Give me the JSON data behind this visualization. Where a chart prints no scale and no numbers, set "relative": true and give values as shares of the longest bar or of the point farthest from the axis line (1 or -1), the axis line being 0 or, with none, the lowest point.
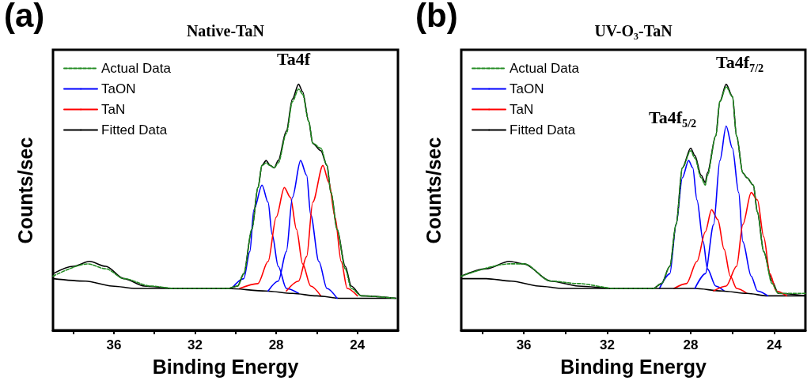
{
  "chart_data": [
    {
      "type": "line",
      "title": "Native-TaN",
      "xlabel": "Binding Energy",
      "ylabel": "Counts/sec",
      "relative": true,
      "xlim": [
        39,
        22
      ],
      "xticks": [
        {
          "value": 38,
          "label": null
        },
        36,
        {
          "value": 34,
          "label": null
        },
        32,
        {
          "value": 30,
          "label": null
        },
        28,
        {
          "value": 26,
          "label": null
        },
        24
      ],
      "legend": "top left",
      "grid": false,
      "marker": "none",
      "annotations": [
        "(a)",
        "Ta4f"
      ],
      "series": [
        {
          "name": "Actual Data",
          "color": "#228b22",
          "line_style": "dashed",
          "x": [
            39.0,
            37.3,
            36.4,
            35.5,
            34.2,
            33.0,
            30.4,
            29.9,
            29.6,
            29.2,
            28.9,
            28.7,
            28.5,
            28.3,
            28.1,
            27.9,
            27.5,
            27.2,
            26.9,
            26.7,
            26.4,
            26.2,
            25.8,
            25.5,
            25.3,
            25.0,
            24.6,
            24.3,
            23.8,
            22.1
          ],
          "values": [
            0.22,
            0.27,
            0.25,
            0.21,
            0.18,
            0.17,
            0.17,
            0.18,
            0.23,
            0.41,
            0.58,
            0.67,
            0.68,
            0.67,
            0.66,
            0.68,
            0.8,
            0.93,
            0.98,
            0.96,
            0.85,
            0.76,
            0.74,
            0.67,
            0.56,
            0.41,
            0.25,
            0.17,
            0.14,
            0.13
          ]
        },
        {
          "name": "TaON",
          "color": "#0000ff",
          "x": [
            30.2,
            29.6,
            29.3,
            29.1,
            28.7,
            28.4,
            28.2,
            27.9,
            27.5,
            26.9
          ],
          "values": [
            0.17,
            0.21,
            0.32,
            0.49,
            0.59,
            0.52,
            0.39,
            0.26,
            0.17,
            0.15
          ]
        },
        {
          "name": "TaN",
          "color": "#ff0000",
          "x": [
            29.8,
            28.9,
            28.4,
            28.0,
            27.6,
            27.3,
            27.0,
            26.7,
            26.3,
            25.8
          ],
          "values": [
            0.17,
            0.19,
            0.28,
            0.46,
            0.58,
            0.54,
            0.41,
            0.27,
            0.18,
            0.14
          ]
        },
        {
          "name": "Fitted Data",
          "color": "#000000",
          "x": [
            39.0,
            38.0,
            37.2,
            36.4,
            35.5,
            34.5,
            33.0,
            30.4,
            29.9,
            29.6,
            29.2,
            28.9,
            28.7,
            28.5,
            28.3,
            28.1,
            27.9,
            27.5,
            27.2,
            26.9,
            26.7,
            26.4,
            26.2,
            25.8,
            25.5,
            25.3,
            25.0,
            24.6,
            24.3,
            23.8,
            22.1
          ],
          "values": [
            0.23,
            0.26,
            0.28,
            0.26,
            0.21,
            0.18,
            0.17,
            0.17,
            0.18,
            0.23,
            0.41,
            0.58,
            0.67,
            0.69,
            0.67,
            0.66,
            0.69,
            0.81,
            0.94,
            1.0,
            0.97,
            0.85,
            0.76,
            0.73,
            0.67,
            0.56,
            0.41,
            0.26,
            0.18,
            0.14,
            0.13
          ]
        },
        {
          "color": "#000000",
          "x": [
            39.0,
            37.4,
            36.1,
            34.9,
            33.0,
            30.4,
            28.5,
            27.2,
            26.0,
            24.8,
            22.1
          ],
          "values": [
            0.21,
            0.2,
            0.18,
            0.17,
            0.17,
            0.17,
            0.16,
            0.15,
            0.14,
            0.13,
            0.13
          ]
        },
        {
          "color": "#0000ff",
          "x": [
            28.4,
            27.9,
            27.5,
            27.2,
            26.8,
            26.5,
            26.3,
            25.9,
            25.5,
            25.0
          ],
          "values": [
            0.16,
            0.2,
            0.32,
            0.54,
            0.69,
            0.63,
            0.47,
            0.28,
            0.17,
            0.13
          ]
        },
        {
          "color": "#ff0000",
          "x": [
            27.5,
            26.9,
            26.5,
            26.2,
            25.7,
            25.4,
            25.1,
            24.8,
            24.5,
            24.0
          ],
          "values": [
            0.16,
            0.2,
            0.3,
            0.52,
            0.67,
            0.6,
            0.46,
            0.28,
            0.17,
            0.14
          ]
        }
      ]
    },
    {
      "type": "line",
      "title": "UV-O₃-TaN",
      "xlabel": "Binding Energy",
      "ylabel": "Counts/sec",
      "relative": true,
      "xlim": [
        39,
        22.5
      ],
      "xticks": [
        {
          "value": 38,
          "label": null
        },
        36,
        {
          "value": 34,
          "label": null
        },
        32,
        {
          "value": 30,
          "label": null
        },
        28,
        {
          "value": 26,
          "label": null
        },
        24
      ],
      "legend": "top left",
      "grid": false,
      "marker": "none",
      "annotations": [
        "(b)",
        "Ta4f$_{5/2}$",
        "Ta4f$_{7/2}$"
      ],
      "series": [
        {
          "name": "Actual Data",
          "color": "#228b22",
          "line_style": "dashed",
          "x": [
            39.0,
            36.7,
            36.0,
            34.7,
            33.4,
            31.6,
            29.8,
            29.4,
            29.0,
            28.7,
            28.4,
            28.0,
            27.8,
            27.5,
            27.3,
            27.2,
            26.8,
            26.6,
            26.3,
            26.0,
            25.8,
            25.5,
            25.3,
            25.0,
            24.8,
            24.5,
            24.1,
            23.8,
            22.5
          ],
          "values": [
            0.22,
            0.27,
            0.27,
            0.2,
            0.19,
            0.17,
            0.17,
            0.19,
            0.26,
            0.43,
            0.66,
            0.73,
            0.7,
            0.62,
            0.59,
            0.63,
            0.79,
            0.93,
            0.99,
            0.95,
            0.79,
            0.64,
            0.62,
            0.59,
            0.48,
            0.32,
            0.19,
            0.15,
            0.15
          ]
        },
        {
          "name": "TaON",
          "color": "#0000ff",
          "x": [
            29.5,
            29.0,
            28.7,
            28.4,
            28.1,
            27.9,
            27.7,
            27.4,
            27.2,
            26.8,
            26.4
          ],
          "values": [
            0.17,
            0.23,
            0.43,
            0.62,
            0.69,
            0.66,
            0.53,
            0.36,
            0.25,
            0.18,
            0.16
          ]
        },
        {
          "name": "TaN",
          "color": "#ff0000",
          "x": [
            28.8,
            28.2,
            27.7,
            27.3,
            27.0,
            26.7,
            26.4,
            26.1,
            25.8,
            25.3
          ],
          "values": [
            0.17,
            0.19,
            0.28,
            0.4,
            0.49,
            0.45,
            0.33,
            0.22,
            0.17,
            0.15
          ]
        },
        {
          "name": "Fitted Data",
          "color": "#000000",
          "x": [
            39.0,
            37.8,
            36.7,
            36.0,
            34.7,
            33.4,
            31.6,
            29.8,
            29.4,
            29.0,
            28.7,
            28.4,
            28.0,
            27.8,
            27.5,
            27.3,
            27.2,
            26.8,
            26.6,
            26.3,
            26.0,
            25.8,
            25.5,
            25.3,
            25.0,
            24.8,
            24.5,
            24.1,
            23.8,
            22.5
          ],
          "values": [
            0.22,
            0.25,
            0.28,
            0.27,
            0.2,
            0.18,
            0.17,
            0.17,
            0.19,
            0.26,
            0.43,
            0.66,
            0.74,
            0.71,
            0.63,
            0.6,
            0.64,
            0.79,
            0.93,
            1.0,
            0.95,
            0.79,
            0.64,
            0.62,
            0.59,
            0.48,
            0.32,
            0.2,
            0.15,
            0.14
          ]
        },
        {
          "color": "#000000",
          "x": [
            39.0,
            37.8,
            36.6,
            35.3,
            34.1,
            31.6,
            29.0,
            27.8,
            26.5,
            25.3,
            24.3,
            22.5
          ],
          "values": [
            0.21,
            0.21,
            0.2,
            0.18,
            0.17,
            0.17,
            0.17,
            0.17,
            0.16,
            0.15,
            0.14,
            0.14
          ]
        },
        {
          "color": "#0000ff",
          "x": [
            27.8,
            27.3,
            26.9,
            26.6,
            26.3,
            26.0,
            25.7,
            25.5,
            25.1,
            24.8,
            24.3
          ],
          "values": [
            0.17,
            0.23,
            0.43,
            0.69,
            0.83,
            0.74,
            0.56,
            0.36,
            0.22,
            0.16,
            0.14
          ]
        },
        {
          "color": "#ff0000",
          "x": [
            26.9,
            26.3,
            25.8,
            25.5,
            25.1,
            24.8,
            24.5,
            24.2,
            23.9,
            23.4
          ],
          "values": [
            0.16,
            0.18,
            0.26,
            0.43,
            0.56,
            0.53,
            0.38,
            0.23,
            0.16,
            0.14
          ]
        }
      ]
    }
  ]
}
